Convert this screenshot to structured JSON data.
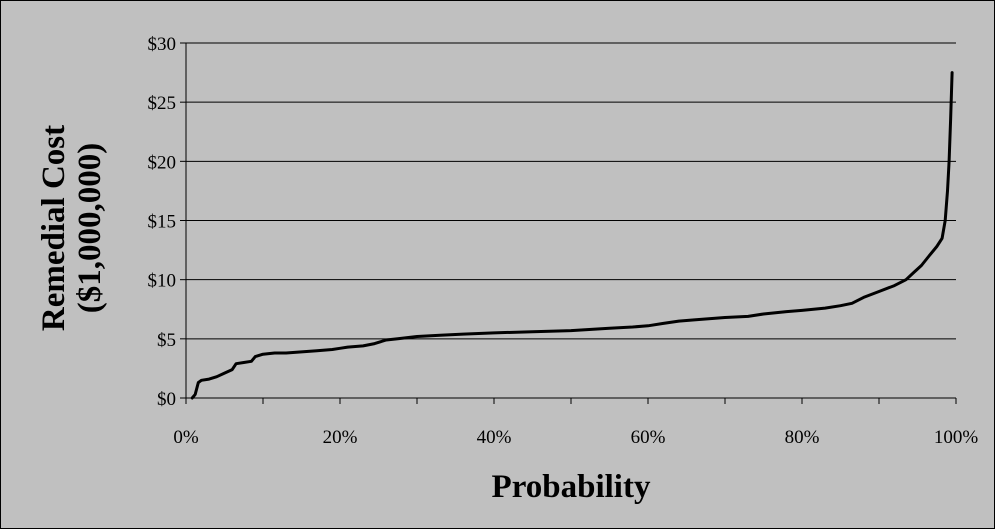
{
  "chart_data": {
    "type": "line",
    "title": "",
    "xlabel": "Probability",
    "ylabel_lines": [
      "Remedial Cost",
      "($1,000,000)"
    ],
    "x_ticks": [
      "0%",
      "10%",
      "20%",
      "30%",
      "40%",
      "50%",
      "60%",
      "70%",
      "80%",
      "90%",
      "100%"
    ],
    "x_tick_labels": [
      "0%",
      "20%",
      "40%",
      "60%",
      "80%",
      "100%"
    ],
    "x_tick_label_values": [
      0,
      20,
      40,
      60,
      80,
      100
    ],
    "y_tick_labels": [
      "$0",
      "$5",
      "$10",
      "$15",
      "$20",
      "$25",
      "$30"
    ],
    "y_tick_label_values": [
      0,
      5,
      10,
      15,
      20,
      25,
      30
    ],
    "xlim": [
      0,
      100
    ],
    "ylim": [
      0,
      30
    ],
    "grid": "horizontal",
    "legend": "none",
    "colors": {
      "background": "#c0c0c0",
      "plot_area": "#c0c0c0",
      "line": "#000000",
      "grid": "#000000"
    },
    "series": [
      {
        "values": [
          [
            0.8,
            0.0
          ],
          [
            1.2,
            0.3
          ],
          [
            1.6,
            1.3
          ],
          [
            2.0,
            1.5
          ],
          [
            3.0,
            1.6
          ],
          [
            4.0,
            1.8
          ],
          [
            5.0,
            2.1
          ],
          [
            6.0,
            2.4
          ],
          [
            6.5,
            2.9
          ],
          [
            7.5,
            3.0
          ],
          [
            8.5,
            3.1
          ],
          [
            9.0,
            3.5
          ],
          [
            10.0,
            3.7
          ],
          [
            11.5,
            3.8
          ],
          [
            13.0,
            3.8
          ],
          [
            15.0,
            3.9
          ],
          [
            17.0,
            4.0
          ],
          [
            19.0,
            4.1
          ],
          [
            20.0,
            4.2
          ],
          [
            21.0,
            4.3
          ],
          [
            23.0,
            4.4
          ],
          [
            24.5,
            4.6
          ],
          [
            26.0,
            4.9
          ],
          [
            27.5,
            5.0
          ],
          [
            30.0,
            5.2
          ],
          [
            33.0,
            5.3
          ],
          [
            36.0,
            5.4
          ],
          [
            40.0,
            5.5
          ],
          [
            45.0,
            5.6
          ],
          [
            50.0,
            5.7
          ],
          [
            55.0,
            5.9
          ],
          [
            58.0,
            6.0
          ],
          [
            60.0,
            6.1
          ],
          [
            62.0,
            6.3
          ],
          [
            64.0,
            6.5
          ],
          [
            66.0,
            6.6
          ],
          [
            70.0,
            6.8
          ],
          [
            73.0,
            6.9
          ],
          [
            75.0,
            7.1
          ],
          [
            78.0,
            7.3
          ],
          [
            80.0,
            7.4
          ],
          [
            83.0,
            7.6
          ],
          [
            85.0,
            7.8
          ],
          [
            86.5,
            8.0
          ],
          [
            88.0,
            8.5
          ],
          [
            90.0,
            9.0
          ],
          [
            92.0,
            9.5
          ],
          [
            93.5,
            10.0
          ],
          [
            94.5,
            10.6
          ],
          [
            95.5,
            11.2
          ],
          [
            96.5,
            12.0
          ],
          [
            97.5,
            12.8
          ],
          [
            98.2,
            13.5
          ],
          [
            98.6,
            15.0
          ],
          [
            98.9,
            17.5
          ],
          [
            99.1,
            20.0
          ],
          [
            99.3,
            23.5
          ],
          [
            99.5,
            27.5
          ]
        ]
      }
    ]
  }
}
